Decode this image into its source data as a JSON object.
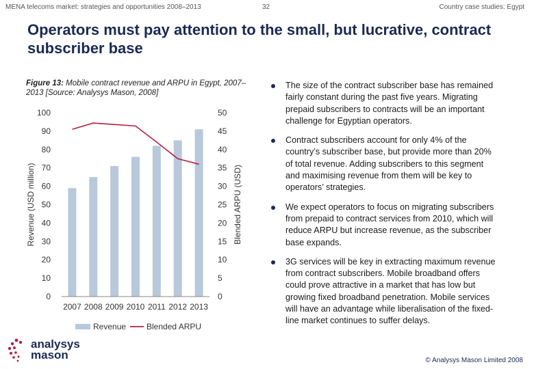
{
  "header": {
    "left": "MENA telecoms market: strategies and opportunities 2008–2013",
    "page_number": "32",
    "right": "Country case studies: Egypt"
  },
  "title": "Operators must pay attention to the small, but lucrative, contract subscriber base",
  "figure": {
    "label": "Figure 13:",
    "caption": "Mobile contract revenue and ARPU in Egypt, 2007–2013 [Source: Analysys Mason, 2008]"
  },
  "chart_data": {
    "type": "bar",
    "categories": [
      "2007",
      "2008",
      "2009",
      "2010",
      "2011",
      "2012",
      "2013"
    ],
    "series": [
      {
        "name": "Revenue",
        "kind": "bar",
        "axis": "left",
        "color": "#b7c9db",
        "values": [
          59,
          65,
          71,
          76,
          82,
          85,
          91
        ]
      },
      {
        "name": "Blended ARPU",
        "kind": "line",
        "axis": "right",
        "color": "#b51f3f",
        "values": [
          45.5,
          47.2,
          46.8,
          46.4,
          42.0,
          37.5,
          36.0
        ]
      }
    ],
    "ylabel": "Revenue (USD million)",
    "y2label": "Blended ARPU (USD)",
    "ylim": [
      0,
      100
    ],
    "y2lim": [
      0,
      50
    ],
    "yticks": [
      "0",
      "10",
      "20",
      "30",
      "40",
      "50",
      "60",
      "70",
      "80",
      "90",
      "100"
    ],
    "y2ticks": [
      "0",
      "5",
      "10",
      "15",
      "20",
      "25",
      "30",
      "35",
      "40",
      "45",
      "50"
    ],
    "legend_position": "bottom",
    "grid": false
  },
  "bullets": [
    "The size of the contract subscriber base has remained fairly constant during the past five years. Migrating prepaid subscribers to contracts will be an important challenge for Egyptian operators.",
    "Contract subscribers account for only 4% of the country’s subscriber base, but provide more than 20% of total revenue. Adding subscribers to this segment and maximising revenue from them will be key to operators’ strategies.",
    "We expect operators to focus on migrating subscribers from prepaid to contract services from 2010, which will reduce ARPU but increase revenue, as the subscriber base expands.",
    "3G services will be key in extracting maximum revenue from contract subscribers. Mobile broadband offers could prove attractive in a market that has low but growing fixed broadband penetration. Mobile services will have an advantage while liberalisation of the fixed-line market continues to suffer delays."
  ],
  "logo": {
    "line1": "analysys",
    "line2": "mason",
    "accent_color": "#b51f3f",
    "text_color": "#1b2a52"
  },
  "footer": {
    "copyright": "© Analysys Mason Limited 2008"
  }
}
